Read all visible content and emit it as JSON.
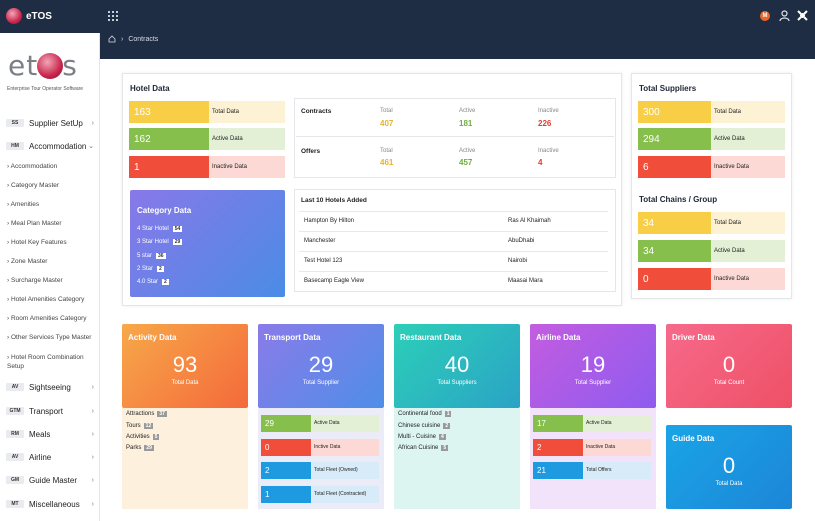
{
  "app": {
    "title": "eTOS"
  },
  "header": {
    "avatar_letter": "M"
  },
  "breadcrumb": {
    "current": "Contracts"
  },
  "brand": {
    "logo_text_left": "et",
    "logo_text_right": "s",
    "tagline": "Enterprise Tour Operator Software"
  },
  "sidebar": {
    "groups": [
      {
        "badge": "SS",
        "label": "Supplier SetUp"
      },
      {
        "badge": "HM",
        "label": "Accommodation"
      }
    ],
    "sub_items": [
      "Accommodation",
      "Category Master",
      "Amenities",
      "Meal Plan Master",
      "Hotel Key Features",
      "Zone Master",
      "Surcharge Master",
      "Hotel Amenities Category",
      "Room Amenities Category",
      "Other Services Type Master",
      "Hotel Room Combination Setup"
    ],
    "bottom_groups": [
      {
        "badge": "AV",
        "label": "Sightseeing"
      },
      {
        "badge": "GTM",
        "label": "Transport"
      },
      {
        "badge": "RM",
        "label": "Meals"
      },
      {
        "badge": "AV",
        "label": "Airline"
      },
      {
        "badge": "GM",
        "label": "Guide Master"
      },
      {
        "badge": "MT",
        "label": "Miscellaneous"
      }
    ]
  },
  "hotel_data": {
    "title": "Hotel Data",
    "stats": [
      {
        "value": "163",
        "label": "Total Data"
      },
      {
        "value": "162",
        "label": "Active Data"
      },
      {
        "value": "1",
        "label": "Inactive Data"
      }
    ]
  },
  "category_data": {
    "title": "Category Data",
    "rows": [
      {
        "label": "4 Star Hotel",
        "count": "54"
      },
      {
        "label": "3 Star Hotel",
        "count": "29"
      },
      {
        "label": "5 star",
        "count": "36"
      },
      {
        "label": "2 Star",
        "count": "2"
      },
      {
        "label": "4.0 Star",
        "count": "2"
      }
    ]
  },
  "contracts": {
    "label": "Contracts",
    "total_label": "Total",
    "active_label": "Active",
    "inactive_label": "Inactive",
    "total": "407",
    "active": "181",
    "inactive": "226"
  },
  "offers": {
    "label": "Offers",
    "total_label": "Total",
    "active_label": "Active",
    "inactive_label": "Inactive",
    "total": "461",
    "active": "457",
    "inactive": "4"
  },
  "last_hotels": {
    "title": "Last 10 Hotels Added",
    "rows": [
      {
        "name": "Hampton By Hilton",
        "city": "Ras Al Khaimah"
      },
      {
        "name": "Manchester",
        "city": "AbuDhabi"
      },
      {
        "name": "Test Hotel 123",
        "city": "Nairobi"
      },
      {
        "name": "Basecamp Eagle View",
        "city": "Maasai Mara"
      }
    ]
  },
  "suppliers": {
    "title": "Total Suppliers",
    "stats": [
      {
        "value": "300",
        "label": "Total Data"
      },
      {
        "value": "294",
        "label": "Active Data"
      },
      {
        "value": "6",
        "label": "Inactive Data"
      }
    ]
  },
  "chains": {
    "title": "Total Chains / Group",
    "stats": [
      {
        "value": "34",
        "label": "Total Data"
      },
      {
        "value": "34",
        "label": "Active Data"
      },
      {
        "value": "0",
        "label": "Inactive Data"
      }
    ]
  },
  "activity": {
    "title": "Activity Data",
    "value": "93",
    "caption": "Total Data",
    "items": [
      {
        "label": "Attractions",
        "count": "37"
      },
      {
        "label": "Tours",
        "count": "12"
      },
      {
        "label": "Activities",
        "count": "5"
      },
      {
        "label": "Parks",
        "count": "29"
      }
    ]
  },
  "transport": {
    "title": "Transport Data",
    "value": "29",
    "caption": "Total Supplier",
    "items": [
      {
        "value": "29",
        "label": "Active Data"
      },
      {
        "value": "0",
        "label": "Inctive Data"
      },
      {
        "value": "2",
        "label": "Total Fleet (Owned)"
      },
      {
        "value": "1",
        "label": "Total Fleet (Contracted)"
      }
    ]
  },
  "restaurant": {
    "title": "Restaurant Data",
    "value": "40",
    "caption": "Total Suppliers",
    "items": [
      {
        "label": "Continental food",
        "count": "1"
      },
      {
        "label": "Chinese cuisine",
        "count": "2"
      },
      {
        "label": "Multi - Cuisine",
        "count": "4"
      },
      {
        "label": "African Cuisine",
        "count": "5"
      }
    ]
  },
  "airline": {
    "title": "Airline Data",
    "value": "19",
    "caption": "Total Supplier",
    "items": [
      {
        "value": "17",
        "label": "Active Data"
      },
      {
        "value": "2",
        "label": "Inactive Data"
      },
      {
        "value": "21",
        "label": "Total Offers"
      }
    ]
  },
  "driver": {
    "title": "Driver Data",
    "value": "0",
    "caption": "Total Count"
  },
  "guide": {
    "title": "Guide Data",
    "value": "0",
    "caption": "Total Data"
  }
}
